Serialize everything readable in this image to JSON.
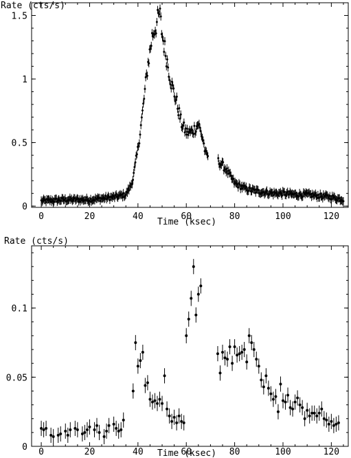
{
  "chart_data": [
    {
      "type": "scatter",
      "ylabel": "Rate (cts/s)",
      "xlabel": "Time (ksec)",
      "xlim": [
        -4,
        127
      ],
      "ylim": [
        -0.01,
        1.6
      ],
      "x_ticks": [
        0,
        20,
        40,
        60,
        80,
        100,
        120
      ],
      "y_ticks": [
        0,
        0.5,
        1,
        1.5
      ],
      "x_tick_labels": [
        "0",
        "20",
        "40",
        "60",
        "80",
        "100",
        "120"
      ],
      "y_tick_labels": [
        "0",
        "0.5",
        "1",
        "1.5"
      ],
      "grid": false,
      "legend": "none",
      "anchors": {
        "x": [
          0,
          10,
          20,
          30,
          35,
          37,
          38,
          40,
          42,
          44,
          46,
          48,
          49,
          50,
          52,
          54,
          56,
          58,
          60,
          62,
          64,
          65,
          66,
          67,
          68,
          70,
          72,
          74,
          76,
          78,
          80,
          84,
          88,
          92,
          96,
          100,
          105,
          110,
          115,
          120,
          125
        ],
        "y": [
          0.04,
          0.05,
          0.05,
          0.07,
          0.09,
          0.16,
          0.22,
          0.45,
          0.75,
          1.1,
          1.35,
          1.45,
          1.52,
          1.35,
          1.15,
          0.95,
          0.82,
          0.65,
          0.58,
          0.58,
          0.62,
          0.65,
          0.58,
          0.52,
          0.4,
          0.4,
          0.37,
          0.34,
          0.3,
          0.24,
          0.18,
          0.14,
          0.12,
          0.11,
          0.1,
          0.1,
          0.09,
          0.09,
          0.08,
          0.07,
          0.05
        ]
      },
      "gap": [
        69,
        73
      ],
      "samples": 380,
      "error": 0.032
    },
    {
      "type": "scatter",
      "ylabel": "Rate (cts/s)",
      "xlabel": "Time (ksec)",
      "xlim": [
        -4,
        127
      ],
      "ylim": [
        0,
        0.145
      ],
      "x_ticks": [
        0,
        20,
        40,
        60,
        80,
        100,
        120
      ],
      "y_ticks": [
        0,
        0.05,
        0.1
      ],
      "x_tick_labels": [
        "0",
        "20",
        "40",
        "60",
        "80",
        "100",
        "120"
      ],
      "y_tick_labels": [
        "0",
        "0.05",
        "0.1"
      ],
      "grid": false,
      "legend": "none",
      "x": [
        0,
        1,
        2,
        4,
        5,
        7,
        8,
        10,
        11,
        12,
        14,
        15,
        17,
        18,
        19,
        20,
        22,
        23,
        24,
        26,
        27,
        28,
        30,
        31,
        32,
        33,
        34,
        38,
        39,
        40,
        41,
        42,
        43,
        44,
        45,
        46,
        47,
        48,
        49,
        50,
        51,
        52,
        53,
        54,
        55,
        56,
        57,
        58,
        59,
        60,
        61,
        62,
        63,
        64,
        65,
        66,
        73,
        74,
        75,
        76,
        77,
        78,
        79,
        80,
        81,
        82,
        83,
        84,
        85,
        86,
        87,
        88,
        89,
        90,
        91,
        92,
        93,
        94,
        95,
        96,
        97,
        98,
        99,
        100,
        101,
        102,
        103,
        104,
        105,
        106,
        107,
        108,
        109,
        110,
        111,
        112,
        113,
        114,
        115,
        116,
        117,
        118,
        119,
        120,
        121,
        122,
        123
      ],
      "y": [
        0.013,
        0.012,
        0.013,
        0.008,
        0.007,
        0.008,
        0.009,
        0.011,
        0.008,
        0.012,
        0.013,
        0.012,
        0.009,
        0.01,
        0.012,
        0.014,
        0.012,
        0.015,
        0.01,
        0.007,
        0.011,
        0.015,
        0.016,
        0.013,
        0.011,
        0.012,
        0.019,
        0.04,
        0.075,
        0.058,
        0.062,
        0.068,
        0.044,
        0.046,
        0.034,
        0.032,
        0.033,
        0.031,
        0.034,
        0.031,
        0.051,
        0.027,
        0.022,
        0.018,
        0.021,
        0.017,
        0.022,
        0.018,
        0.017,
        0.08,
        0.092,
        0.107,
        0.13,
        0.095,
        0.11,
        0.116,
        0.067,
        0.053,
        0.068,
        0.064,
        0.063,
        0.072,
        0.06,
        0.072,
        0.066,
        0.067,
        0.068,
        0.07,
        0.061,
        0.08,
        0.075,
        0.07,
        0.063,
        0.058,
        0.048,
        0.043,
        0.051,
        0.042,
        0.038,
        0.034,
        0.036,
        0.025,
        0.045,
        0.033,
        0.032,
        0.037,
        0.028,
        0.027,
        0.032,
        0.035,
        0.03,
        0.028,
        0.02,
        0.026,
        0.022,
        0.024,
        0.024,
        0.022,
        0.024,
        0.027,
        0.02,
        0.019,
        0.016,
        0.018,
        0.015,
        0.016,
        0.017
      ],
      "error": 0.0055
    }
  ]
}
